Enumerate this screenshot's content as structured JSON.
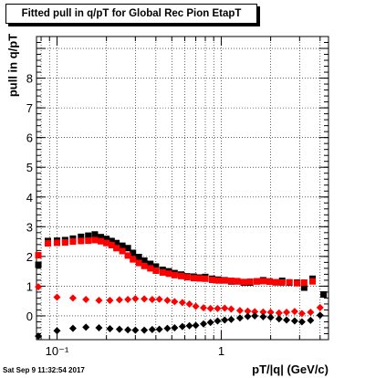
{
  "chart_data": {
    "type": "scatter",
    "title": "Fitted pull in q/pT for Global Rec Pion EtapT",
    "xlabel": "pT/|q| (GeV/c)",
    "ylabel": "pull in q/pT",
    "x_scale": "log",
    "xlim": [
      0.075,
      4.5
    ],
    "ylim": [
      -0.8,
      9.4
    ],
    "x_ticks": [
      {
        "value": 0.1,
        "label": "10⁻¹"
      },
      {
        "value": 1,
        "label": "1"
      }
    ],
    "y_ticks": [
      0,
      1,
      2,
      3,
      4,
      5,
      6,
      7,
      8
    ],
    "grid": true,
    "timestamp": "Sat Sep  9 11:32:54 2017",
    "series": [
      {
        "marker": "square",
        "color": "#000000",
        "x": [
          0.077,
          0.088,
          0.1,
          0.112,
          0.125,
          0.14,
          0.155,
          0.17,
          0.185,
          0.2,
          0.215,
          0.23,
          0.25,
          0.27,
          0.29,
          0.315,
          0.34,
          0.37,
          0.4,
          0.44,
          0.48,
          0.52,
          0.57,
          0.62,
          0.68,
          0.74,
          0.8,
          0.88,
          0.96,
          1.05,
          1.15,
          1.25,
          1.37,
          1.5,
          1.65,
          1.8,
          1.97,
          2.15,
          2.35,
          2.6,
          2.9,
          3.2,
          3.6,
          4.2
        ],
        "y": [
          1.72,
          2.52,
          2.53,
          2.55,
          2.6,
          2.66,
          2.7,
          2.74,
          2.65,
          2.59,
          2.52,
          2.45,
          2.36,
          2.28,
          2.12,
          1.98,
          1.86,
          1.75,
          1.66,
          1.55,
          1.5,
          1.44,
          1.39,
          1.33,
          1.32,
          1.29,
          1.31,
          1.25,
          1.22,
          1.2,
          1.16,
          1.16,
          1.12,
          1.12,
          1.16,
          1.2,
          1.16,
          1.13,
          1.18,
          1.12,
          1.12,
          0.95,
          1.25,
          0.72
        ]
      },
      {
        "marker": "square",
        "color": "#ff0000",
        "x": [
          0.077,
          0.088,
          0.1,
          0.112,
          0.125,
          0.14,
          0.155,
          0.17,
          0.185,
          0.2,
          0.215,
          0.23,
          0.25,
          0.27,
          0.29,
          0.315,
          0.34,
          0.37,
          0.4,
          0.44,
          0.48,
          0.52,
          0.57,
          0.62,
          0.68,
          0.74,
          0.8,
          0.88,
          0.96,
          1.05,
          1.15,
          1.25,
          1.37,
          1.5,
          1.65,
          1.8,
          1.97,
          2.15,
          2.35,
          2.6,
          2.9,
          3.2,
          3.6
        ],
        "y": [
          2.04,
          2.44,
          2.46,
          2.47,
          2.5,
          2.52,
          2.53,
          2.55,
          2.51,
          2.45,
          2.38,
          2.28,
          2.18,
          2.03,
          1.9,
          1.78,
          1.68,
          1.6,
          1.52,
          1.46,
          1.42,
          1.37,
          1.34,
          1.3,
          1.27,
          1.26,
          1.25,
          1.21,
          1.19,
          1.19,
          1.18,
          1.17,
          1.14,
          1.15,
          1.16,
          1.17,
          1.15,
          1.13,
          1.12,
          1.13,
          1.1,
          1.12,
          1.16
        ]
      },
      {
        "marker": "diamond",
        "color": "#ff0000",
        "x": [
          0.077,
          0.1,
          0.125,
          0.15,
          0.18,
          0.21,
          0.24,
          0.27,
          0.3,
          0.34,
          0.38,
          0.42,
          0.47,
          0.52,
          0.58,
          0.64,
          0.7,
          0.78,
          0.86,
          0.95,
          1.05,
          1.15,
          1.3,
          1.45,
          1.6,
          1.8,
          2.0,
          2.25,
          2.5,
          2.8,
          3.1,
          3.5,
          4.0
        ],
        "y": [
          0.98,
          0.63,
          0.6,
          0.55,
          0.52,
          0.52,
          0.54,
          0.55,
          0.58,
          0.57,
          0.55,
          0.56,
          0.52,
          0.48,
          0.45,
          0.4,
          0.32,
          0.27,
          0.25,
          0.25,
          0.26,
          0.23,
          0.18,
          0.16,
          0.14,
          0.13,
          0.12,
          0.1,
          0.12,
          0.15,
          0.08,
          0.12,
          0.28
        ]
      },
      {
        "marker": "diamond",
        "color": "#000000",
        "x": [
          0.077,
          0.1,
          0.125,
          0.15,
          0.18,
          0.21,
          0.24,
          0.27,
          0.3,
          0.34,
          0.38,
          0.42,
          0.47,
          0.52,
          0.58,
          0.64,
          0.7,
          0.78,
          0.86,
          0.95,
          1.05,
          1.15,
          1.3,
          1.45,
          1.6,
          1.8,
          2.0,
          2.25,
          2.5,
          2.8,
          3.1,
          3.5,
          4.0
        ],
        "y": [
          -0.68,
          -0.5,
          -0.42,
          -0.38,
          -0.4,
          -0.43,
          -0.45,
          -0.47,
          -0.48,
          -0.48,
          -0.46,
          -0.45,
          -0.42,
          -0.4,
          -0.36,
          -0.33,
          -0.32,
          -0.27,
          -0.22,
          -0.17,
          -0.14,
          -0.12,
          -0.07,
          -0.02,
          0.0,
          -0.03,
          -0.05,
          -0.1,
          -0.14,
          -0.17,
          -0.2,
          -0.15,
          0.02
        ]
      }
    ]
  }
}
